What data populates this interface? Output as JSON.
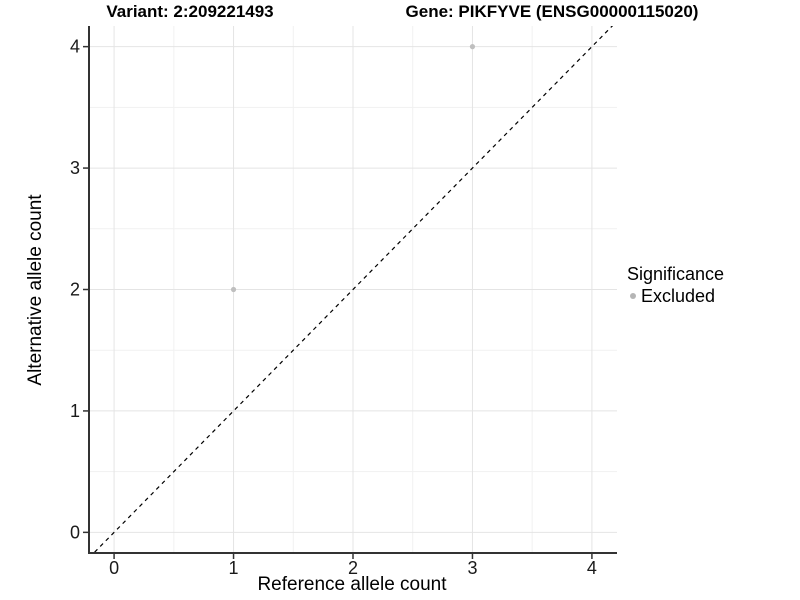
{
  "chart_data": {
    "type": "scatter",
    "title_left": "Variant: 2:209221493",
    "title_right": "Gene: PIKFYVE (ENSG00000115020)",
    "xlabel": "Reference allele count",
    "ylabel": "Alternative allele count",
    "xlim": [
      -0.21,
      4.21
    ],
    "ylim": [
      -0.17,
      4.17
    ],
    "xticks": [
      0,
      1,
      2,
      3,
      4
    ],
    "yticks": [
      0,
      1,
      2,
      3,
      4
    ],
    "minor_gridlines_x": [
      0.5,
      1.5,
      2.5,
      3.5
    ],
    "minor_gridlines_y": [
      0.5,
      1.5,
      2.5,
      3.5
    ],
    "grid": "major+minor",
    "identity_line": {
      "slope": 1,
      "intercept": 0,
      "style": "dashed",
      "color": "#000000"
    },
    "series": [
      {
        "name": "Excluded",
        "color": "#bfbfbf",
        "points": [
          {
            "x": 1,
            "y": 2
          },
          {
            "x": 3,
            "y": 4
          }
        ]
      }
    ],
    "legend": {
      "title": "Significance",
      "position": "right",
      "entries": [
        {
          "label": "Excluded",
          "color": "#b5b5b5",
          "marker": "circle"
        }
      ]
    },
    "colors": {
      "point": "#bfbfbf",
      "grid_major": "#e4e4e4",
      "grid_minor": "#f1f1f1",
      "axis_line": "#333333",
      "tick_text": "#1a1a1a",
      "background": "#ffffff"
    }
  }
}
